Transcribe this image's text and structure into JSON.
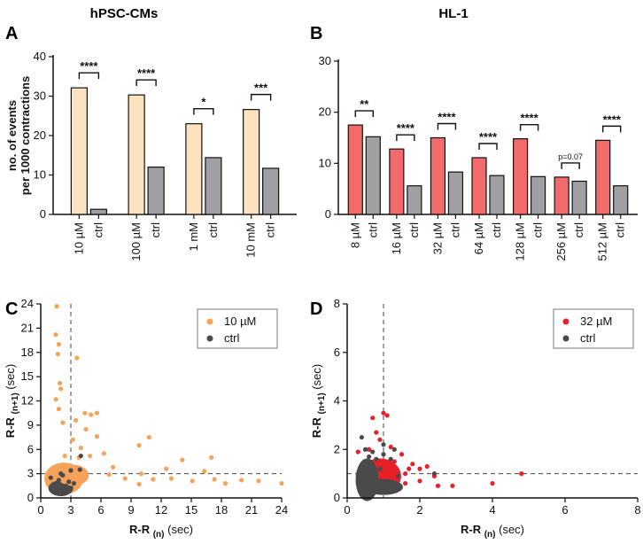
{
  "panels": {
    "A": "A",
    "B": "B",
    "C": "C",
    "D": "D",
    "title_a": "hPSC-CMs",
    "title_b": "HL-1"
  },
  "colors": {
    "peach": "#fde2c0",
    "red": "#f26b6b",
    "grey": "#a0a0a4",
    "orange": "#f5a35a",
    "scatter_red": "#e8202a",
    "dark": "#4a4a4a"
  },
  "chart_data": [
    {
      "id": "A",
      "type": "bar",
      "title": "hPSC-CMs",
      "ylabel": [
        "no. of events",
        "per 1000 contractions"
      ],
      "ylim": [
        0,
        40
      ],
      "yticks": [
        0,
        10,
        20,
        30,
        40
      ],
      "categories": [
        "10 µM",
        "ctrl",
        "100 µM",
        "ctrl",
        "1 mM",
        "ctrl",
        "10 mM",
        "ctrl"
      ],
      "values": [
        32.1,
        1.3,
        30.3,
        12.0,
        23.0,
        14.4,
        26.6,
        11.7
      ],
      "groups": [
        "treated",
        "ctrl",
        "treated",
        "ctrl",
        "treated",
        "ctrl",
        "treated",
        "ctrl"
      ],
      "significance": [
        "****",
        "****",
        "*",
        "***"
      ]
    },
    {
      "id": "B",
      "type": "bar",
      "title": "HL-1",
      "ylabel": [],
      "ylim": [
        0,
        30
      ],
      "yticks": [
        0,
        10,
        20,
        30
      ],
      "categories": [
        "8 µM",
        "ctrl",
        "16 µM",
        "ctrl",
        "32 µM",
        "ctrl",
        "64 µM",
        "ctrl",
        "128 µM",
        "ctrl",
        "256 µM",
        "ctrl",
        "512 µM",
        "ctrl"
      ],
      "values": [
        17.5,
        15.2,
        12.8,
        5.6,
        15.0,
        8.3,
        11.1,
        7.6,
        14.8,
        7.4,
        7.3,
        6.5,
        14.5,
        5.6
      ],
      "groups": [
        "treated",
        "ctrl",
        "treated",
        "ctrl",
        "treated",
        "ctrl",
        "treated",
        "ctrl",
        "treated",
        "ctrl",
        "treated",
        "ctrl",
        "treated",
        "ctrl"
      ],
      "significance": [
        "**",
        "****",
        "****",
        "****",
        "****",
        "p=0.07",
        "****"
      ]
    },
    {
      "id": "C",
      "type": "scatter",
      "xlabel": "R-R",
      "xlabel_sub": "(n)",
      "xlabel_unit": "(sec)",
      "ylabel": "R-R",
      "ylabel_sub": "(n+1)",
      "ylabel_unit": "(sec)",
      "xlim": [
        0,
        24
      ],
      "ylim": [
        0,
        24
      ],
      "xticks": [
        0,
        3,
        6,
        9,
        12,
        15,
        18,
        21,
        24
      ],
      "yticks": [
        0,
        3,
        6,
        9,
        12,
        15,
        18,
        21,
        24
      ],
      "refline": 3,
      "legend": [
        "10 µM",
        "ctrl"
      ],
      "series": [
        {
          "name": "10 µM",
          "points": [
            [
              1.6,
              23.7
            ],
            [
              1.8,
              19.0
            ],
            [
              1.5,
              20.2
            ],
            [
              1.7,
              17.8
            ],
            [
              3.6,
              17.3
            ],
            [
              1.9,
              14.2
            ],
            [
              2.0,
              13.5
            ],
            [
              1.5,
              12.2
            ],
            [
              1.8,
              11.0
            ],
            [
              4.4,
              10.5
            ],
            [
              5.0,
              10.3
            ],
            [
              5.6,
              10.5
            ],
            [
              3.5,
              9.6
            ],
            [
              2.2,
              9.3
            ],
            [
              4.5,
              8.5
            ],
            [
              5.6,
              7.6
            ],
            [
              10.8,
              7.5
            ],
            [
              9.8,
              6.5
            ],
            [
              3.2,
              7.2
            ],
            [
              4.0,
              6.2
            ],
            [
              6.3,
              5.5
            ],
            [
              2.4,
              5.2
            ],
            [
              3.8,
              5.0
            ],
            [
              4.9,
              5.2
            ],
            [
              17.0,
              5.0
            ],
            [
              14.1,
              4.7
            ],
            [
              10.0,
              3.0
            ],
            [
              12.5,
              3.6
            ],
            [
              16.3,
              3.3
            ],
            [
              11.2,
              2.3
            ],
            [
              13.0,
              2.4
            ],
            [
              17.3,
              2.3
            ],
            [
              20.0,
              2.2
            ],
            [
              21.7,
              2.1
            ],
            [
              24.0,
              1.8
            ],
            [
              15.1,
              2.1
            ],
            [
              18.4,
              1.8
            ],
            [
              9.8,
              1.7
            ],
            [
              8.4,
              2.4
            ],
            [
              7.2,
              3.8
            ],
            [
              6.8,
              2.9
            ]
          ]
        },
        {
          "name": "ctrl",
          "points": [
            [
              1.8,
              2.2
            ],
            [
              2.2,
              2.8
            ],
            [
              2.5,
              1.5
            ],
            [
              1.5,
              1.2
            ],
            [
              3.0,
              3.4
            ],
            [
              2.8,
              2.0
            ],
            [
              3.3,
              1.8
            ],
            [
              1.7,
              0.8
            ],
            [
              2.1,
              0.5
            ],
            [
              1.2,
              1.6
            ],
            [
              4.0,
              5.2
            ],
            [
              3.9,
              3.5
            ],
            [
              2.0,
              3.0
            ],
            [
              1.0,
              2.5
            ]
          ]
        }
      ]
    },
    {
      "id": "D",
      "type": "scatter",
      "xlabel": "R-R",
      "xlabel_sub": "(n)",
      "xlabel_unit": "(sec)",
      "ylabel": "R-R",
      "ylabel_sub": "(n+1)",
      "ylabel_unit": "(sec)",
      "xlim": [
        0,
        8
      ],
      "ylim": [
        0,
        8
      ],
      "xticks": [
        0,
        2,
        4,
        6,
        8
      ],
      "yticks": [
        0,
        2,
        4,
        6,
        8
      ],
      "refline": 1,
      "legend": [
        "32 µM",
        "ctrl"
      ],
      "series": [
        {
          "name": "32 µM",
          "points": [
            [
              1.0,
              3.5
            ],
            [
              1.1,
              3.4
            ],
            [
              0.7,
              3.3
            ],
            [
              0.6,
              2.0
            ],
            [
              0.9,
              2.4
            ],
            [
              1.2,
              2.1
            ],
            [
              1.5,
              1.8
            ],
            [
              1.8,
              1.4
            ],
            [
              2.0,
              1.2
            ],
            [
              2.2,
              1.3
            ],
            [
              1.6,
              1.0
            ],
            [
              2.5,
              0.5
            ],
            [
              2.0,
              0.7
            ],
            [
              1.6,
              0.6
            ],
            [
              2.9,
              0.5
            ],
            [
              4.0,
              0.6
            ],
            [
              4.8,
              1.0
            ],
            [
              2.4,
              0.9
            ],
            [
              1.3,
              1.5
            ],
            [
              1.7,
              1.2
            ],
            [
              0.8,
              2.7
            ],
            [
              0.3,
              1.9
            ]
          ]
        },
        {
          "name": "ctrl",
          "points": [
            [
              0.5,
              2.0
            ],
            [
              0.6,
              1.7
            ],
            [
              0.8,
              1.6
            ],
            [
              0.7,
              1.9
            ],
            [
              1.0,
              1.8
            ],
            [
              1.2,
              1.6
            ],
            [
              0.9,
              1.2
            ],
            [
              1.4,
              0.9
            ],
            [
              2.4,
              1.0
            ],
            [
              1.0,
              2.2
            ],
            [
              0.4,
              2.5
            ],
            [
              1.3,
              2.0
            ]
          ]
        }
      ]
    }
  ]
}
